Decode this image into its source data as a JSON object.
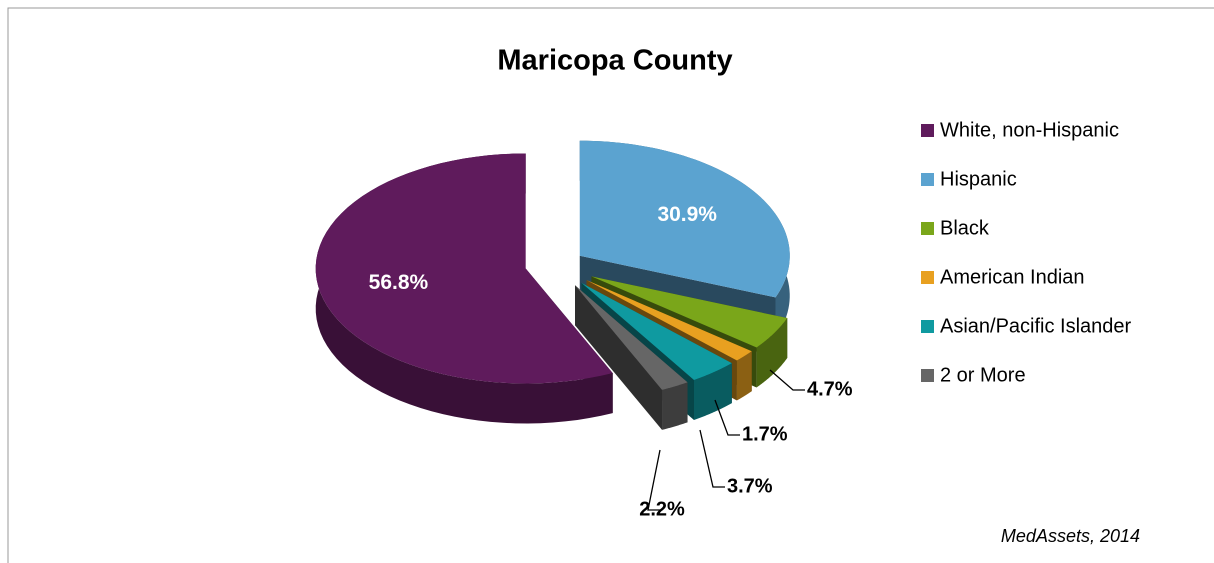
{
  "chart_data": {
    "type": "pie",
    "title": "Maricopa County",
    "categories": [
      "White, non-Hispanic",
      "Hispanic",
      "Black",
      "American Indian",
      "Asian/Pacific Islander",
      "2 or More"
    ],
    "values": [
      56.8,
      30.9,
      4.7,
      1.7,
      3.7,
      2.2
    ],
    "value_labels": [
      "56.8%",
      "30.9%",
      "4.7%",
      "1.7%",
      "3.7%",
      "2.2%"
    ],
    "colors": [
      "#5f1b5c",
      "#5ba3d0",
      "#7aa61a",
      "#e8a020",
      "#0f9aa0",
      "#666666"
    ],
    "legend": "right",
    "source": "MedAssets, 2014"
  }
}
